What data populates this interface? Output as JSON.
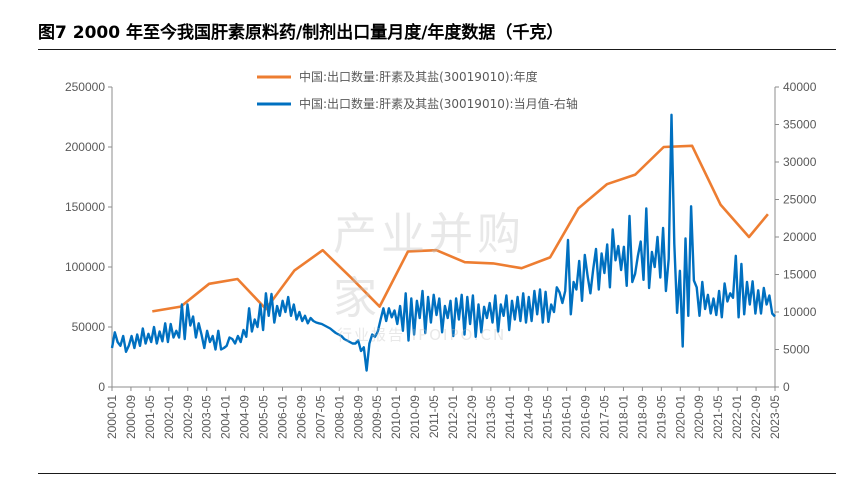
{
  "title": "图7   2000 年至今我国肝素原料药/制剂出口量月度/年度数据（千克）",
  "watermark": {
    "main": "产业并购家",
    "sub": "行业报告 IPOIPO.CN"
  },
  "chart_data": {
    "type": "line",
    "legend_position": "top-center",
    "grid": false,
    "y_left": {
      "min": 0,
      "max": 250000,
      "ticks": [
        0,
        50000,
        100000,
        150000,
        200000,
        250000
      ]
    },
    "y_right": {
      "min": 0,
      "max": 40000,
      "ticks": [
        0,
        5000,
        10000,
        15000,
        20000,
        25000,
        30000,
        35000,
        40000
      ]
    },
    "x_ticks": [
      "2000-01",
      "2000-09",
      "2001-05",
      "2002-01",
      "2002-09",
      "2003-05",
      "2004-01",
      "2004-09",
      "2005-05",
      "2006-01",
      "2006-09",
      "2007-05",
      "2008-01",
      "2008-09",
      "2009-05",
      "2010-01",
      "2010-09",
      "2011-05",
      "2012-01",
      "2012-09",
      "2013-05",
      "2014-01",
      "2014-09",
      "2015-05",
      "2016-01",
      "2016-09",
      "2017-05",
      "2018-01",
      "2018-09",
      "2019-05",
      "2020-01",
      "2020-09",
      "2021-05",
      "2022-01",
      "2022-09",
      "2023-05"
    ],
    "x_range": [
      "2000-01",
      "2023-05"
    ],
    "series": [
      {
        "name": "中国:出口数量:肝素及其盐(30019010):年度",
        "color": "#ED7D31",
        "axis": "left",
        "x": [
          "2001-06",
          "2002-06",
          "2003-06",
          "2004-06",
          "2005-06",
          "2006-06",
          "2007-06",
          "2008-06",
          "2009-06",
          "2010-06",
          "2011-06",
          "2012-06",
          "2013-06",
          "2014-06",
          "2015-06",
          "2016-06",
          "2017-06",
          "2018-06",
          "2019-06",
          "2020-06",
          "2021-06",
          "2022-06",
          "2023-02"
        ],
        "values": [
          63000,
          67000,
          86000,
          90000,
          65000,
          97000,
          114000,
          91000,
          67000,
          113000,
          114000,
          104000,
          103000,
          99000,
          108000,
          149000,
          169000,
          177000,
          200000,
          201000,
          152000,
          125000,
          144000
        ]
      },
      {
        "name": "中国:出口数量:肝素及其盐(30019010):当月值-右轴",
        "color": "#0070C0",
        "axis": "right",
        "x_start": "2000-01",
        "values": [
          5200,
          7300,
          6000,
          5500,
          6800,
          4700,
          5500,
          6800,
          5200,
          7000,
          5500,
          7800,
          5800,
          7100,
          6000,
          8000,
          5800,
          7400,
          6100,
          8500,
          6000,
          8400,
          6600,
          7500,
          6600,
          11000,
          6400,
          11000,
          8200,
          9400,
          6600,
          8500,
          7000,
          5200,
          7500,
          6000,
          6800,
          5000,
          7500,
          5000,
          5200,
          5500,
          6600,
          6400,
          5800,
          6800,
          6000,
          7600,
          6700,
          10500,
          7400,
          9000,
          8000,
          11000,
          7600,
          12500,
          9500,
          12400,
          8600,
          10800,
          9500,
          11500,
          10000,
          12000,
          9500,
          11000,
          9000,
          10000,
          8800,
          9500,
          8500,
          9200,
          8800,
          8600,
          8500,
          8400,
          8200,
          8000,
          7800,
          7500,
          7200,
          7000,
          6800,
          6400,
          6200,
          6000,
          5800,
          5800,
          6200,
          4800,
          5300,
          2200,
          5800,
          7000,
          6700,
          7400,
          9000,
          10500,
          8800,
          10500,
          9300,
          10200,
          8400,
          10800,
          7500,
          12500,
          6200,
          11800,
          7000,
          11500,
          9200,
          12800,
          7200,
          12000,
          8600,
          12300,
          9600,
          11800,
          7300,
          10800,
          9200,
          11500,
          6800,
          11800,
          9000,
          12300,
          7000,
          12000,
          8400,
          12200,
          6700,
          11000,
          7300,
          10700,
          9200,
          11200,
          8600,
          12200,
          7400,
          11000,
          9500,
          12200,
          7600,
          11500,
          9000,
          12000,
          8800,
          12500,
          8600,
          12000,
          8800,
          12800,
          9700,
          13000,
          8600,
          12700,
          8700,
          11000,
          10000,
          13300,
          12600,
          11200,
          12800,
          19600,
          9700,
          14000,
          13000,
          16800,
          11500,
          17600,
          14800,
          12500,
          15700,
          18400,
          13000,
          17800,
          15200,
          19000,
          13300,
          21000,
          16900,
          18800,
          15600,
          18700,
          13500,
          22800,
          14000,
          15100,
          17500,
          19400,
          14300,
          23800,
          13200,
          18000,
          16000,
          20000,
          14600,
          21200,
          12800,
          17100,
          36300,
          19100,
          9900,
          15500,
          5400,
          19800,
          9500,
          24100,
          14200,
          13300,
          9500,
          14000,
          10400,
          12300,
          9800,
          11800,
          9600,
          12800,
          9300,
          13800,
          11400,
          12500,
          11900,
          17500,
          9300,
          16400,
          9700,
          14000,
          11000,
          14100,
          9800,
          12900,
          9800,
          13200,
          11000,
          12200,
          9800,
          9400
        ]
      }
    ]
  }
}
